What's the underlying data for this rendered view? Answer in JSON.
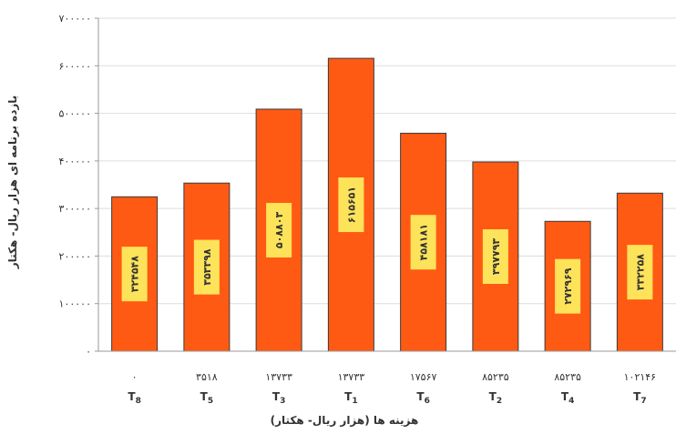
{
  "chart_data": {
    "type": "bar",
    "xlabel": "هزینه ها (هزار ریال- هکتار)",
    "ylabel": "بازده برنامه ای هزار ریال- هکتار",
    "ylim": [
      0,
      700000
    ],
    "yticks": [
      "۰",
      "۱۰۰۰۰۰",
      "۲۰۰۰۰۰",
      "۳۰۰۰۰۰",
      "۴۰۰۰۰۰",
      "۵۰۰۰۰۰",
      "۶۰۰۰۰۰",
      "۷۰۰۰۰۰"
    ],
    "categories": [
      "T8",
      "T5",
      "T3",
      "T1",
      "T6",
      "T2",
      "T4",
      "T7"
    ],
    "cost_labels": [
      "۰",
      "۳۵۱۸",
      "۱۳۷۳۳",
      "۱۳۷۳۳",
      "۱۷۵۶۷",
      "۸۵۲۳۵",
      "۸۵۲۳۵",
      "۱۰۲۱۴۶"
    ],
    "value_labels": [
      "۳۲۴۵۴۸",
      "۳۵۳۳۹۸",
      "۵۰۸۸۰۳",
      "۶۱۵۶۵۱",
      "۴۵۸۱۸۱",
      "۳۹۷۷۹۳",
      "۲۷۲۹۶۹",
      "۳۳۲۲۵۸"
    ],
    "values": [
      324548,
      353398,
      508803,
      615651,
      458181,
      397793,
      272969,
      332258
    ],
    "colors": {
      "bar_fill": "#ff5a14",
      "bar_stroke": "#3a3a3a",
      "label_box": "#fde35a",
      "axis": "#999999",
      "grid": "#dddddd",
      "text": "#333333"
    },
    "grid": true,
    "legend": "none"
  }
}
